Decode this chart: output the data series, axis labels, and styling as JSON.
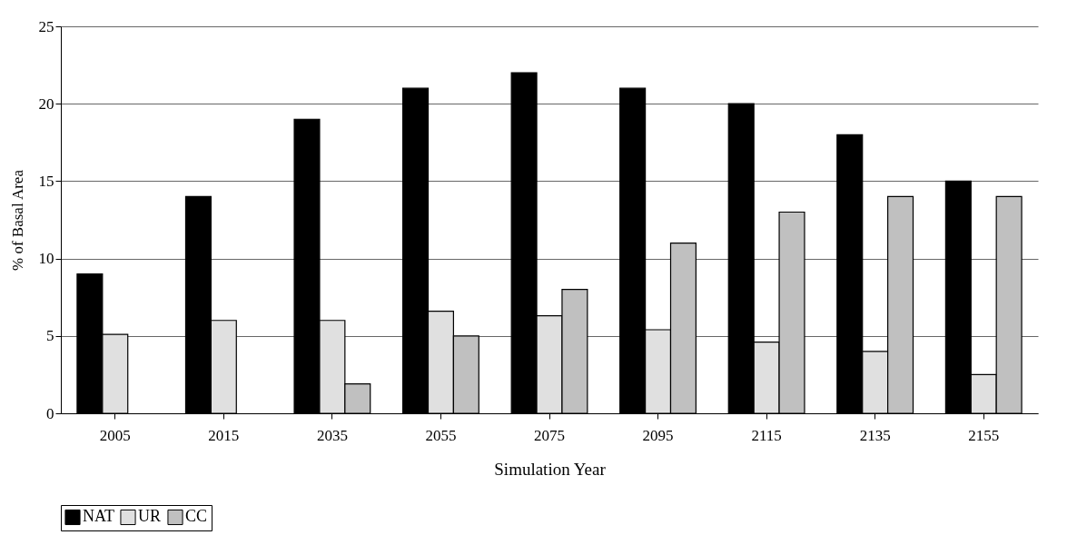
{
  "chart_data": {
    "type": "bar",
    "xlabel": "Simulation Year",
    "ylabel": "% of Basal Area",
    "categories": [
      "2005",
      "2015",
      "2035",
      "2055",
      "2075",
      "2095",
      "2115",
      "2135",
      "2155"
    ],
    "series": [
      {
        "name": "NAT",
        "color": "#000000",
        "values": [
          9,
          14,
          19,
          21,
          22,
          21,
          20,
          18,
          15
        ]
      },
      {
        "name": "UR",
        "color": "#e0e0e0",
        "values": [
          5.1,
          6,
          6,
          6.6,
          6.3,
          5.4,
          4.6,
          4,
          2.5
        ]
      },
      {
        "name": "CC",
        "color": "#c0c0c0",
        "values": [
          null,
          null,
          1.9,
          5,
          8,
          11,
          13,
          14,
          14
        ]
      }
    ],
    "ylim": [
      0,
      25
    ],
    "yticks": [
      0,
      5,
      10,
      15,
      20,
      25
    ],
    "grid": "y",
    "legend": "bottom"
  }
}
